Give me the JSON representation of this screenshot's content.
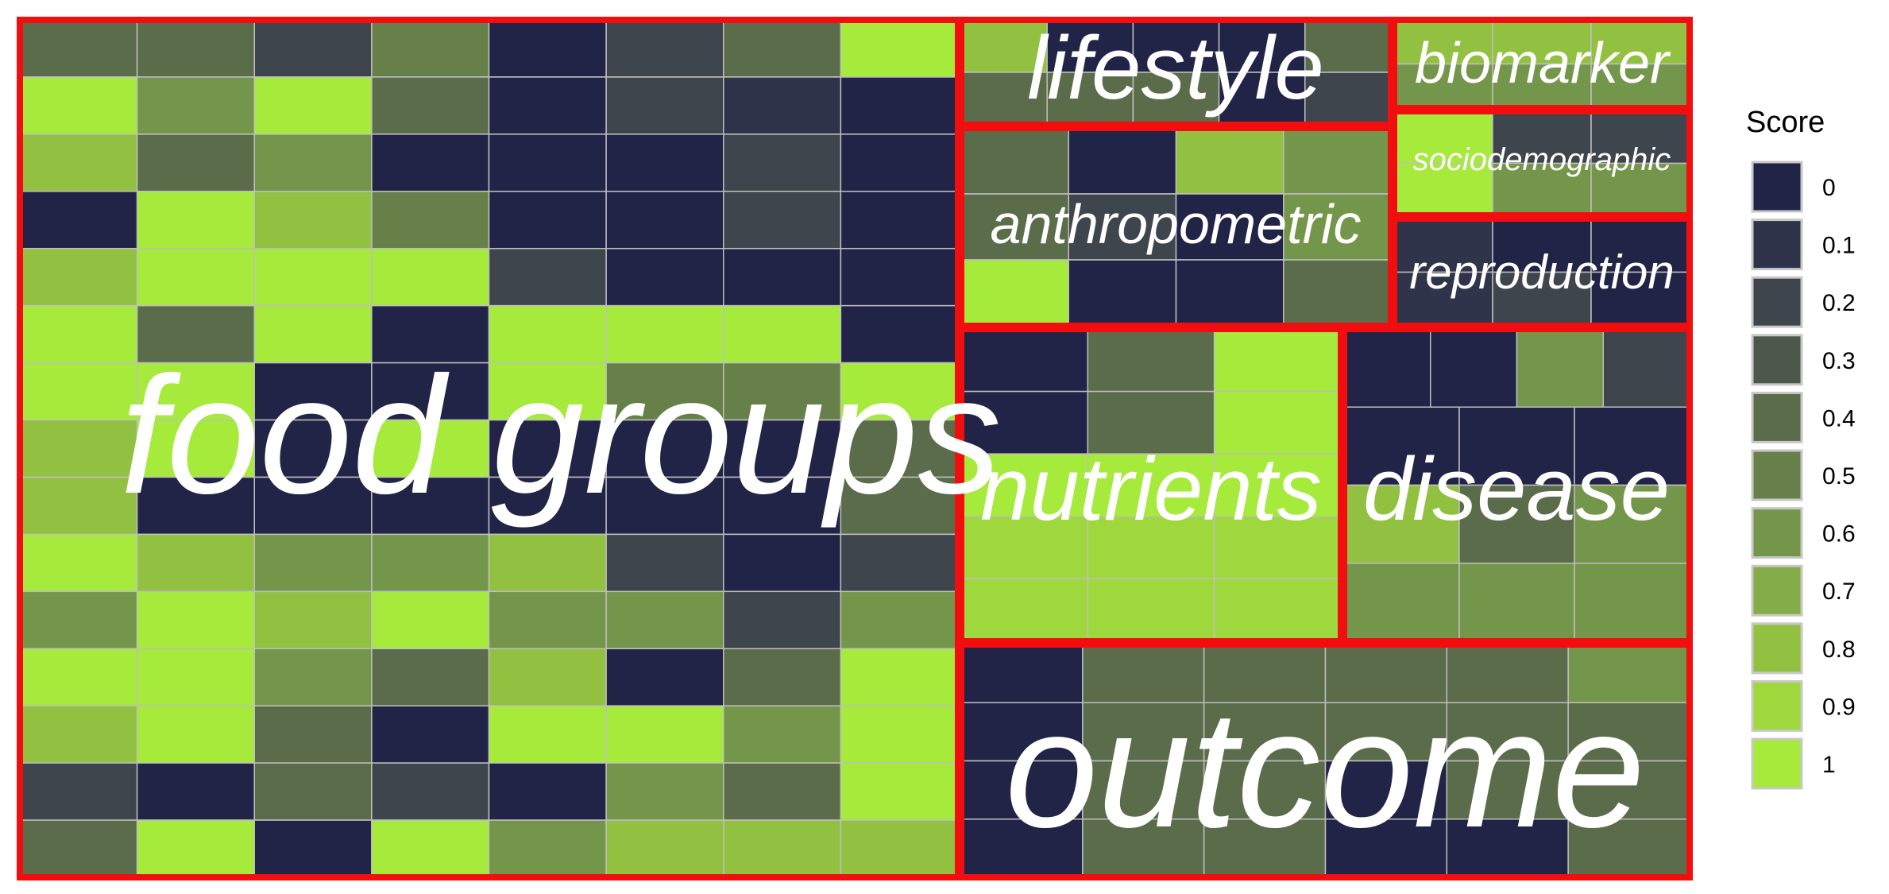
{
  "chart_data": {
    "type": "treemap",
    "colors": {
      "scale": [
        "#222447",
        "#30344a",
        "#3e454c",
        "#4b584a",
        "#5b6c4a",
        "#67804a",
        "#74964a",
        "#84ad48",
        "#92c142",
        "#9fd83c",
        "#a6ea3b"
      ],
      "group_border": "#f20e0e",
      "tile_border": "#bfbfbf",
      "label": "#ffffff"
    },
    "legend": {
      "title": "Score",
      "ticks": [
        "0",
        "0.1",
        "0.2",
        "0.3",
        "0.4",
        "0.5",
        "0.6",
        "0.7",
        "0.8",
        "0.9",
        "1"
      ],
      "placement": "right"
    },
    "groups": [
      {
        "label": "food groups",
        "rows": [
          [
            0.4,
            0.4,
            0.2,
            0.5,
            0,
            0.2,
            0.4,
            1
          ],
          [
            1,
            0.6,
            1,
            0.4,
            0,
            0.2,
            0.1,
            0
          ],
          [
            0.8,
            0.4,
            0.6,
            0,
            0,
            0,
            0.2,
            0
          ],
          [
            0,
            1,
            0.8,
            0.5,
            0,
            0,
            0.2,
            0
          ],
          [
            0.8,
            1,
            1,
            1,
            0.2,
            0,
            0,
            0
          ],
          [
            1,
            0.4,
            1,
            0,
            1,
            1,
            1,
            0
          ],
          [
            1,
            1,
            0,
            0,
            1,
            0.5,
            0.5,
            1
          ],
          [
            0.8,
            1,
            0,
            1,
            0,
            0,
            0,
            0.4
          ],
          [
            0.8,
            0,
            0,
            0,
            0,
            0,
            0,
            0.4
          ],
          [
            1,
            0.8,
            0.6,
            0.6,
            0.8,
            0.2,
            0,
            0.2
          ],
          [
            0.6,
            1,
            0.8,
            1,
            0.6,
            0.6,
            0.2,
            0.6
          ],
          [
            1,
            1,
            0.6,
            0.4,
            0.8,
            0,
            0.4,
            1
          ],
          [
            0.8,
            1,
            0.4,
            0,
            1,
            1,
            0.6,
            1
          ],
          [
            0.2,
            0,
            0.4,
            0.2,
            0,
            0.6,
            0.4,
            1
          ],
          [
            0.4,
            1,
            0,
            1,
            0.6,
            0.8,
            0.8,
            0.8
          ]
        ]
      },
      {
        "label": "lifestyle",
        "rows": [
          [
            0.8,
            0,
            0,
            0,
            0.4
          ],
          [
            0.4,
            0.4,
            0.4,
            0,
            0.2
          ]
        ]
      },
      {
        "label": "biomarker",
        "rows": [
          [
            0.8,
            0.8,
            0.8
          ],
          [
            0.6,
            0.6,
            0.6
          ]
        ]
      },
      {
        "label": "anthropometric",
        "rows": [
          [
            0.4,
            0,
            0.8,
            0.6
          ],
          [
            0.4,
            0.2,
            0,
            0.6
          ],
          [
            1,
            0,
            0,
            0.4
          ]
        ]
      },
      {
        "label": "sociodemographic",
        "rows": [
          [
            1,
            0.2,
            0.2
          ],
          [
            1,
            0.6,
            0.6
          ]
        ]
      },
      {
        "label": "reproduction",
        "rows": [
          [
            0.1,
            0,
            0
          ],
          [
            0.1,
            0.2,
            0
          ]
        ]
      },
      {
        "label": "nutrients",
        "rows": [
          [
            0,
            0.4,
            1
          ],
          [
            0,
            0.4,
            1
          ],
          [
            1,
            1,
            1
          ],
          [
            0.9,
            0.9,
            0.9
          ],
          [
            0.9,
            0.9,
            0.9
          ]
        ]
      },
      {
        "label": "disease",
        "rows": [
          [
            0,
            0,
            0.6,
            0.2
          ],
          [
            0,
            0,
            0
          ],
          [
            0.8,
            0.4,
            0.6
          ],
          [
            0.6,
            0.6,
            0.6
          ]
        ]
      },
      {
        "label": "outcome",
        "rows": [
          [
            0,
            0.4,
            0.4,
            0.4,
            0.4,
            0.6
          ],
          [
            0,
            0.4,
            0.4,
            0.4,
            0.4,
            0.4
          ],
          [
            0,
            0.4,
            0.4,
            0,
            0.4,
            0.4
          ],
          [
            0,
            0.4,
            0.4,
            0,
            0,
            0.4
          ]
        ]
      }
    ]
  }
}
